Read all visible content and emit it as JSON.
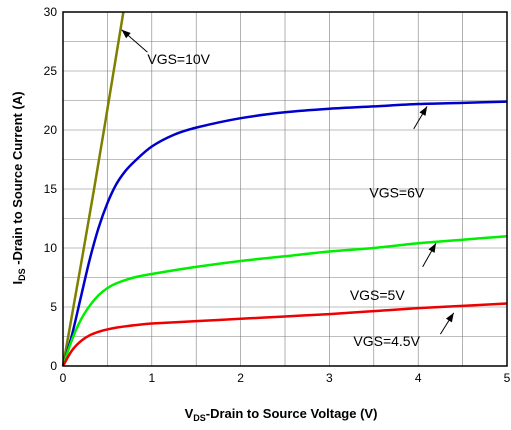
{
  "chart_data": {
    "type": "line",
    "xlabel": {
      "main": "V",
      "sub": "DS",
      "rest": "-Drain to Source Voltage (V)"
    },
    "ylabel": {
      "main": "I",
      "sub": "DS",
      "rest": " -Drain to Source Current (A)"
    },
    "xlim": [
      0,
      5
    ],
    "ylim": [
      0,
      30
    ],
    "x_ticks": [
      "0",
      "1",
      "2",
      "3",
      "4",
      "5"
    ],
    "y_ticks": [
      "0",
      "5",
      "10",
      "15",
      "20",
      "25",
      "30"
    ],
    "grid": true,
    "colors": {
      "vgs_10": "#808000",
      "vgs_6": "#0000CC",
      "vgs_5": "#00EE00",
      "vgs_4_5": "#EE0000",
      "grid": "#7f7f7f"
    },
    "series": [
      {
        "key": "vgs_10",
        "x": [
          0,
          0.35,
          0.68
        ],
        "y": [
          0,
          15,
          30
        ]
      },
      {
        "key": "vgs_6",
        "x": [
          0,
          0.1,
          0.2,
          0.3,
          0.4,
          0.5,
          0.6,
          0.7,
          0.8,
          1.0,
          1.25,
          1.5,
          2.0,
          2.5,
          3.0,
          3.5,
          4.0,
          4.5,
          5.0
        ],
        "y": [
          0,
          2.6,
          5.8,
          9.0,
          11.7,
          13.8,
          15.4,
          16.5,
          17.3,
          18.6,
          19.6,
          20.2,
          21.0,
          21.5,
          21.8,
          22.0,
          22.2,
          22.3,
          22.4
        ]
      },
      {
        "key": "vgs_5",
        "x": [
          0,
          0.1,
          0.2,
          0.3,
          0.4,
          0.5,
          0.6,
          0.8,
          1.0,
          1.5,
          2.0,
          2.5,
          3.0,
          3.5,
          4.0,
          4.5,
          5.0
        ],
        "y": [
          0,
          2.2,
          3.9,
          5.1,
          6.0,
          6.6,
          7.0,
          7.5,
          7.8,
          8.4,
          8.9,
          9.3,
          9.7,
          10.0,
          10.4,
          10.7,
          11.0
        ]
      },
      {
        "key": "vgs_4_5",
        "x": [
          0,
          0.1,
          0.2,
          0.3,
          0.4,
          0.5,
          0.6,
          0.8,
          1.0,
          1.5,
          2.0,
          2.5,
          3.0,
          3.5,
          4.0,
          4.5,
          5.0
        ],
        "y": [
          0,
          1.3,
          2.1,
          2.6,
          2.9,
          3.1,
          3.25,
          3.45,
          3.6,
          3.8,
          4.0,
          4.2,
          4.4,
          4.65,
          4.9,
          5.1,
          5.3
        ]
      }
    ],
    "annotations": [
      {
        "label": "VGS=10V",
        "text_at": [
          0.95,
          25.6
        ],
        "arrow_from": [
          0.95,
          26.6
        ],
        "arrow_to": [
          0.66,
          28.5
        ]
      },
      {
        "label": "VGS=6V",
        "text_at": [
          3.45,
          14.3
        ],
        "arrow_from": [
          3.95,
          20.1
        ],
        "arrow_to": [
          4.1,
          22.0
        ]
      },
      {
        "label": "VGS=5V",
        "text_at": [
          3.23,
          5.6
        ],
        "arrow_from": [
          4.05,
          8.4
        ],
        "arrow_to": [
          4.2,
          10.4
        ]
      },
      {
        "label": "VGS=4.5V",
        "text_at": [
          3.27,
          1.7
        ],
        "arrow_from": [
          4.25,
          2.7
        ],
        "arrow_to": [
          4.4,
          4.5
        ]
      }
    ]
  }
}
